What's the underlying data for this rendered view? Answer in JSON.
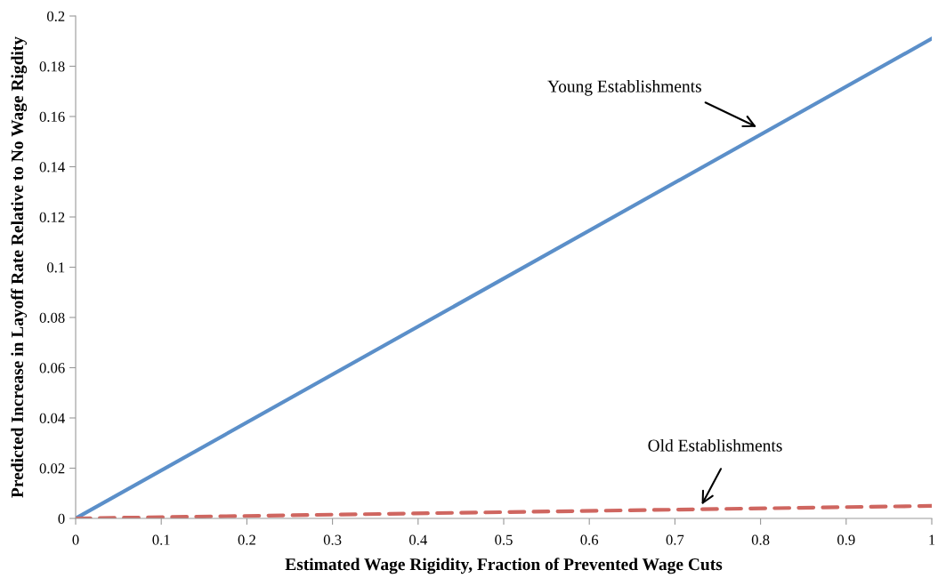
{
  "chart_data": {
    "type": "line",
    "xlabel": "Estimated Wage Rigidity, Fraction of Prevented Wage Cuts",
    "ylabel": "Predicted Increase in Layoff Rate Relative to No Wage Rigdity",
    "x": [
      0,
      1
    ],
    "series": [
      {
        "color": "#5b8fc9",
        "values": [
          0,
          0.191
        ],
        "line_style": "solid"
      },
      {
        "color": "#cf6660",
        "values": [
          0,
          0.005
        ],
        "line_style": "dashed"
      }
    ],
    "annotations": [
      "Young Establishments",
      "Old Establishments"
    ],
    "xlim": [
      0,
      1
    ],
    "xticks": [
      0,
      0.1,
      0.2,
      0.3,
      0.4,
      0.5,
      0.6,
      0.7,
      0.8,
      0.9,
      1
    ],
    "ylim": [
      0,
      0.2
    ],
    "yticks": [
      0,
      0.02,
      0.04,
      0.06,
      0.08,
      0.1,
      0.12,
      0.14,
      0.16,
      0.18,
      0.2
    ],
    "grid": false,
    "legend": false,
    "marker": "none"
  }
}
